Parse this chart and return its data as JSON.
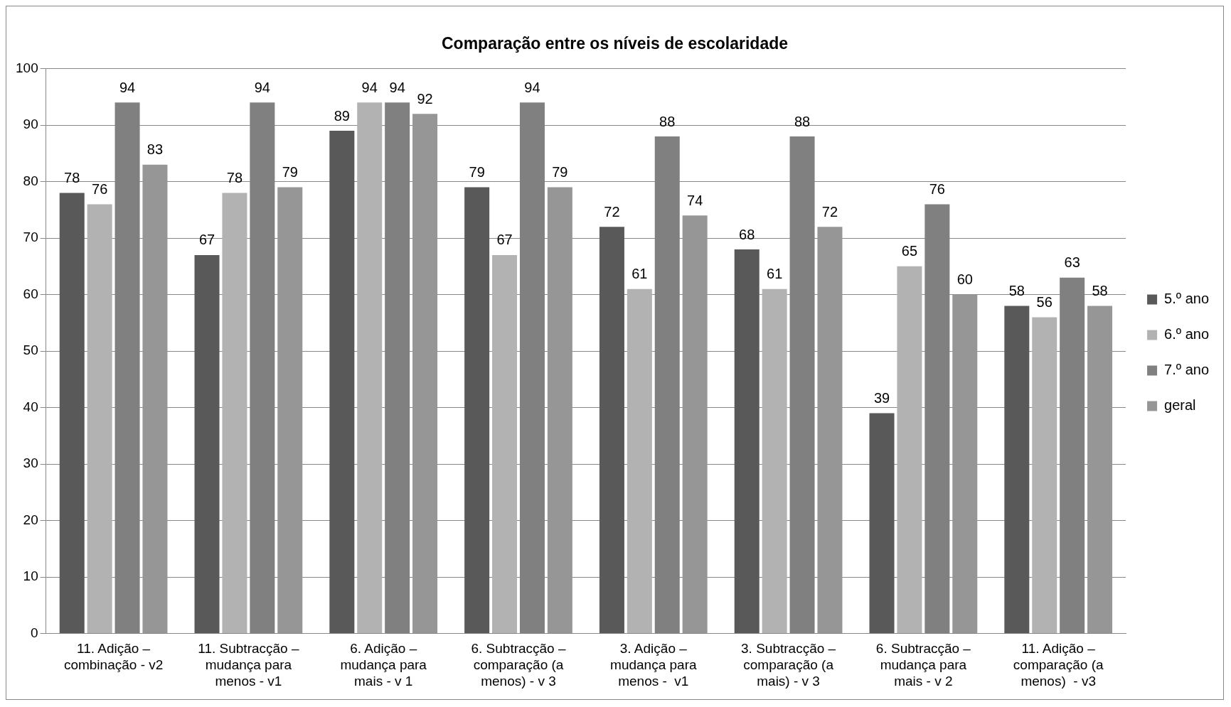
{
  "chart_data": {
    "type": "bar",
    "title": "Comparação entre os níveis de escolaridade",
    "categories": [
      "11. Adição – combinação - v2",
      "11. Subtracção – mudança para menos - v1",
      "6. Adição – mudança para mais - v 1",
      "6. Subtracção – comparação (a menos) - v 3",
      "3. Adição – mudança para menos -  v1",
      "3. Subtracção – comparação (a mais) - v 3",
      "6. Subtracção – mudança para mais - v 2",
      "11. Adição – comparação (a menos)  - v3"
    ],
    "series": [
      {
        "name": "5.º ano",
        "color": "#595959",
        "values": [
          78,
          67,
          89,
          79,
          72,
          68,
          39,
          58
        ]
      },
      {
        "name": "6.º ano",
        "color": "#b2b2b2",
        "values": [
          76,
          78,
          94,
          67,
          61,
          61,
          65,
          56
        ]
      },
      {
        "name": "7.º ano",
        "color": "#808080",
        "values": [
          94,
          94,
          94,
          94,
          88,
          88,
          76,
          63
        ]
      },
      {
        "name": "geral",
        "color": "#969696",
        "values": [
          83,
          79,
          92,
          79,
          74,
          72,
          60,
          58
        ]
      }
    ],
    "ylim": [
      0,
      100
    ],
    "yticks": [
      0,
      10,
      20,
      30,
      40,
      50,
      60,
      70,
      80,
      90,
      100
    ],
    "grid": "y",
    "legend": "right",
    "data_labels": true
  }
}
